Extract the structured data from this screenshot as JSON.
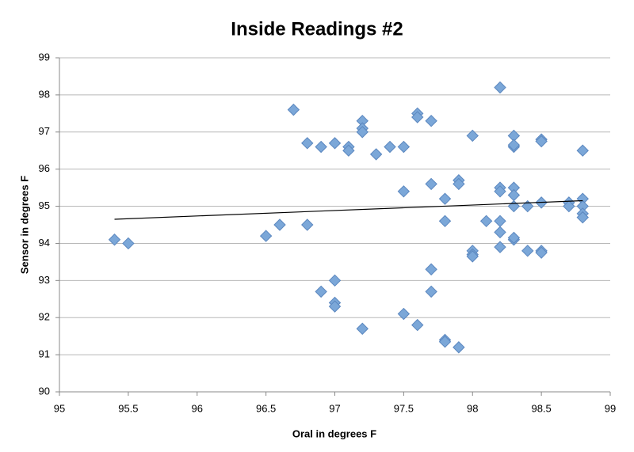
{
  "chart_data": {
    "type": "scatter",
    "title": "Inside Readings #2",
    "x_label": "Oral in degrees F",
    "y_label": "Sensor in degrees F",
    "xlim": [
      95,
      99
    ],
    "xticks": [
      95,
      95.5,
      96,
      96.5,
      97,
      97.5,
      98,
      98.5,
      99
    ],
    "ylim": [
      90,
      99
    ],
    "yticks": [
      90,
      91,
      92,
      93,
      94,
      95,
      96,
      97,
      98,
      99
    ],
    "grid": true,
    "color": "#7ba7d8",
    "x": [
      95.4,
      95.5,
      96.5,
      96.6,
      96.7,
      96.8,
      96.8,
      96.9,
      96.9,
      97.0,
      97.0,
      97.0,
      97.0,
      97.1,
      97.1,
      97.2,
      97.2,
      97.2,
      97.2,
      97.3,
      97.4,
      97.5,
      97.5,
      97.5,
      97.6,
      97.6,
      97.6,
      97.7,
      97.7,
      97.7,
      97.7,
      97.8,
      97.8,
      97.8,
      97.8,
      97.9,
      97.9,
      97.9,
      98.0,
      98.0,
      98.0,
      98.0,
      98.1,
      98.2,
      98.2,
      98.2,
      98.2,
      98.2,
      98.2,
      98.3,
      98.3,
      98.3,
      98.3,
      98.3,
      98.3,
      98.3,
      98.3,
      98.4,
      98.4,
      98.5,
      98.5,
      98.5,
      98.5,
      98.5,
      98.7,
      98.7,
      98.8,
      98.8,
      98.8,
      98.8,
      98.8
    ],
    "y": [
      94.1,
      94.0,
      94.2,
      94.5,
      97.6,
      96.7,
      94.5,
      96.6,
      92.7,
      96.7,
      93.0,
      92.4,
      92.3,
      96.6,
      96.5,
      97.3,
      97.1,
      97.0,
      91.7,
      96.4,
      96.6,
      96.6,
      95.4,
      92.1,
      97.5,
      97.4,
      91.8,
      97.3,
      95.6,
      93.3,
      92.7,
      95.2,
      94.6,
      91.4,
      91.35,
      95.7,
      95.6,
      91.2,
      96.9,
      93.8,
      93.7,
      93.65,
      94.6,
      98.2,
      95.5,
      95.4,
      94.6,
      94.3,
      93.9,
      96.9,
      96.6,
      96.65,
      95.5,
      95.3,
      95.0,
      94.1,
      94.15,
      95.0,
      93.8,
      96.8,
      96.75,
      95.1,
      93.8,
      93.75,
      95.1,
      95.0,
      96.5,
      95.2,
      95.0,
      94.8,
      94.7
    ],
    "trendline": {
      "x": [
        95.4,
        98.8
      ],
      "y": [
        94.65,
        95.15
      ],
      "color": "#000000"
    }
  }
}
